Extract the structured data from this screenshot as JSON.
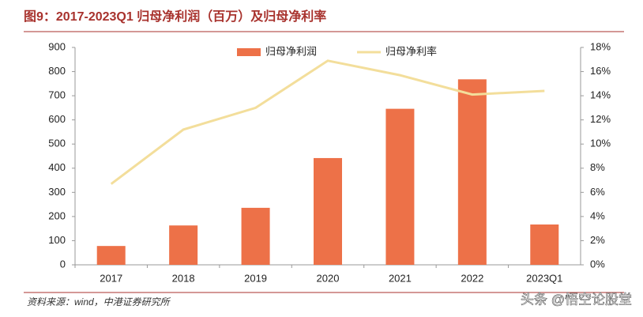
{
  "chart_data": {
    "type": "bar",
    "title": "图9：2017-2023Q1 归母净利润（百万）及归母净利率",
    "categories": [
      "2017",
      "2018",
      "2019",
      "2020",
      "2021",
      "2022",
      "2023Q1"
    ],
    "series": [
      {
        "name": "归母净利润",
        "type": "bar",
        "color": "#ed7148",
        "values": [
          78,
          163,
          236,
          442,
          646,
          768,
          167
        ]
      },
      {
        "name": "归母净利率",
        "type": "line",
        "axis": "y2",
        "color": "#f3de9b",
        "values": [
          6.7,
          11.2,
          13.0,
          16.9,
          15.7,
          14.1,
          14.4
        ]
      }
    ],
    "ylim": [
      0,
      900
    ],
    "yticks": [
      0,
      100,
      200,
      300,
      400,
      500,
      600,
      700,
      800,
      900
    ],
    "y2lim": [
      0,
      18
    ],
    "y2ticks": [
      {
        "value": 0,
        "label": "0%"
      },
      {
        "value": 2,
        "label": "2%"
      },
      {
        "value": 4,
        "label": "4%"
      },
      {
        "value": 6,
        "label": "6%"
      },
      {
        "value": 8,
        "label": "8%"
      },
      {
        "value": 10,
        "label": "10%"
      },
      {
        "value": 12,
        "label": "12%"
      },
      {
        "value": 14,
        "label": "14%"
      },
      {
        "value": 16,
        "label": "16%"
      },
      {
        "value": 18,
        "label": "18%"
      }
    ],
    "legend": "top",
    "source": "资料来源：wind，中港证券研究所",
    "watermark": "头条 @悟空论股堂"
  }
}
